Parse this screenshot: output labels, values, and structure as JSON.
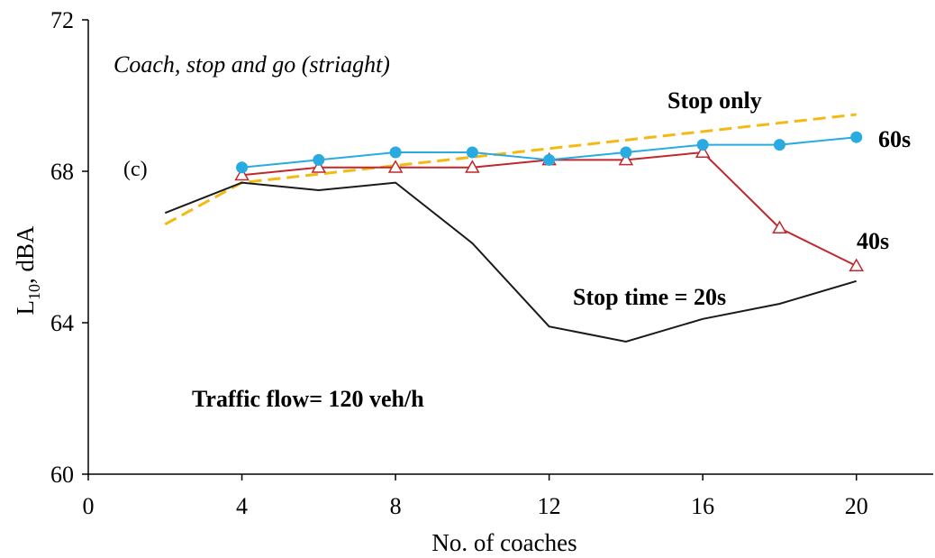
{
  "chart_data": {
    "type": "line",
    "title": "",
    "xlabel": "No. of coaches",
    "ylabel_main": "L",
    "ylabel_sub": "10",
    "ylabel_rest": ", dBA",
    "xlim": [
      0,
      22
    ],
    "ylim": [
      60,
      72
    ],
    "xticks": [
      "0",
      "4",
      "8",
      "12",
      "16",
      "20"
    ],
    "yticks": [
      "60",
      "64",
      "68",
      "72"
    ],
    "annotations": {
      "panel_title": "Coach, stop and go (striaght)",
      "panel_label": "(c)",
      "traffic_flow": "Traffic flow= 120 veh/h"
    },
    "series": [
      {
        "name": "Stop only",
        "color": "#F5B914",
        "style": "dashed",
        "marker": "none",
        "x": [
          2,
          4,
          20
        ],
        "y": [
          66.6,
          67.7,
          69.5
        ]
      },
      {
        "name": "60s",
        "color": "#29ABE2",
        "style": "solid",
        "marker": "filled-circle",
        "x": [
          4,
          6,
          8,
          10,
          12,
          14,
          16,
          18,
          20
        ],
        "y": [
          68.1,
          68.3,
          68.5,
          68.5,
          68.3,
          68.5,
          68.7,
          68.7,
          68.9
        ]
      },
      {
        "name": "40s",
        "color": "#C0282D",
        "style": "solid",
        "marker": "open-triangle",
        "x": [
          4,
          6,
          8,
          10,
          12,
          14,
          16,
          18,
          20
        ],
        "y": [
          67.9,
          68.1,
          68.1,
          68.1,
          68.3,
          68.3,
          68.5,
          66.5,
          65.5
        ]
      },
      {
        "name": "Stop time = 20s",
        "color": "#1A1A1A",
        "style": "solid",
        "marker": "none",
        "x": [
          2,
          4,
          6,
          8,
          10,
          12,
          14,
          16,
          18,
          20
        ],
        "y": [
          66.9,
          67.7,
          67.5,
          67.7,
          66.1,
          63.9,
          63.5,
          64.1,
          64.5,
          65.1
        ]
      }
    ]
  }
}
